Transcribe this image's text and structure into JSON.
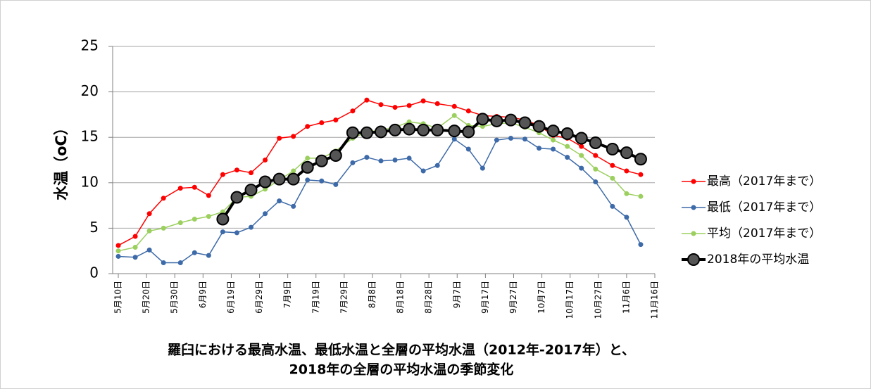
{
  "chart_data": {
    "type": "line",
    "title": [
      "羅臼における最高水温、最低水温と全層の平均水温（2012年-2017年）と、",
      "2018年の全層の平均水温の季節変化"
    ],
    "ylabel": "水温（oC）",
    "x": [
      0,
      6,
      11,
      16,
      22,
      27,
      32,
      37,
      42,
      47,
      52,
      57,
      62,
      67,
      72,
      77,
      83,
      88,
      93,
      98,
      103,
      108,
      113,
      119,
      124,
      129,
      134,
      139,
      144,
      149,
      154,
      159,
      164,
      169,
      175,
      180,
      185
    ],
    "xlim": [
      -2,
      190
    ],
    "xticks": [
      {
        "value": 0,
        "label": "5月10日"
      },
      {
        "value": 10,
        "label": "5月20日"
      },
      {
        "value": 20,
        "label": "5月30日"
      },
      {
        "value": 30,
        "label": "6月9日"
      },
      {
        "value": 40,
        "label": "6月19日"
      },
      {
        "value": 50,
        "label": "6月29日"
      },
      {
        "value": 60,
        "label": "7月9日"
      },
      {
        "value": 70,
        "label": "7月19日"
      },
      {
        "value": 80,
        "label": "7月29日"
      },
      {
        "value": 90,
        "label": "8月8日"
      },
      {
        "value": 100,
        "label": "8月18日"
      },
      {
        "value": 110,
        "label": "8月28日"
      },
      {
        "value": 120,
        "label": "9月7日"
      },
      {
        "value": 130,
        "label": "9月17日"
      },
      {
        "value": 140,
        "label": "9月27日"
      },
      {
        "value": 150,
        "label": "10月7日"
      },
      {
        "value": 160,
        "label": "10月17日"
      },
      {
        "value": 170,
        "label": "10月27日"
      },
      {
        "value": 180,
        "label": "11月6日"
      },
      {
        "value": 190,
        "label": "11月16日"
      }
    ],
    "ylim": [
      0,
      25
    ],
    "yticks": [
      0,
      5,
      10,
      15,
      20,
      25
    ],
    "grid": true,
    "legend": "right",
    "series": [
      {
        "name": "最高（2017年まで）",
        "color": "#ff0000",
        "values": [
          3.1,
          4.1,
          6.6,
          8.3,
          9.4,
          9.5,
          8.6,
          10.9,
          11.4,
          11.1,
          12.5,
          14.9,
          15.1,
          16.2,
          16.6,
          16.9,
          17.9,
          19.1,
          18.6,
          18.3,
          18.5,
          19.0,
          18.7,
          18.4,
          17.9,
          17.4,
          17.3,
          17.2,
          16.9,
          16.3,
          15.2,
          14.9,
          14.0,
          13.0,
          11.9,
          11.3,
          10.9
        ]
      },
      {
        "name": "最低（2017年まで）",
        "color": "#3d6aa8",
        "values": [
          1.9,
          1.8,
          2.6,
          1.2,
          1.2,
          2.3,
          2.0,
          4.6,
          4.5,
          5.1,
          6.6,
          8.0,
          7.4,
          10.3,
          10.2,
          9.8,
          12.2,
          12.8,
          12.4,
          12.5,
          12.7,
          11.3,
          11.9,
          14.8,
          13.7,
          11.6,
          14.7,
          14.9,
          14.8,
          13.8,
          13.7,
          12.8,
          11.6,
          10.1,
          7.4,
          6.2,
          3.2
        ]
      },
      {
        "name": "平均（2017年まで）",
        "color": "#9bcf5e",
        "values": [
          2.5,
          2.9,
          4.7,
          5.0,
          5.6,
          6.0,
          6.3,
          6.8,
          8.4,
          8.5,
          9.3,
          10.3,
          11.3,
          12.7,
          12.7,
          13.5,
          14.9,
          15.6,
          15.8,
          16.1,
          16.7,
          16.5,
          16.0,
          17.4,
          16.3,
          16.2,
          16.5,
          16.6,
          16.1,
          15.5,
          14.7,
          14.0,
          13.0,
          11.5,
          10.5,
          8.8,
          8.5
        ]
      },
      {
        "name": "2018年の平均水温",
        "color": "#000000",
        "values": [
          null,
          null,
          null,
          null,
          null,
          null,
          null,
          6.0,
          8.4,
          9.2,
          10.1,
          10.4,
          10.4,
          11.7,
          12.4,
          13.0,
          15.5,
          15.5,
          15.6,
          15.8,
          15.9,
          15.8,
          15.8,
          15.7,
          15.6,
          17.0,
          16.8,
          16.9,
          16.6,
          16.2,
          15.7,
          15.4,
          14.9,
          14.4,
          13.7,
          13.3,
          12.6
        ]
      }
    ]
  }
}
